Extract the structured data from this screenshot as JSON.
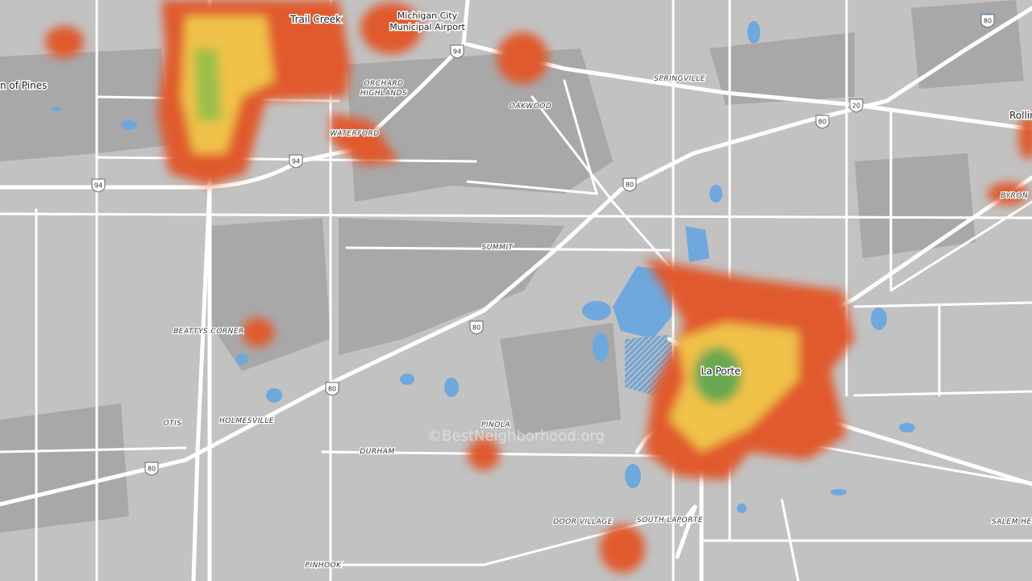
{
  "places": [
    "Trail Creek",
    "Michigan City",
    "Municipal Airport",
    "n of Pines",
    "ORCHARD",
    "HIGHLANDS",
    "WATERFORD",
    "OAKWOOD",
    "SPRINGVILLE",
    "Rollin",
    "BYRON",
    "SUMMIT",
    "BEATTYS CORNER",
    "La Porte",
    "OTIS",
    "HOLMESVILLE",
    "DURHAM",
    "PINOLA",
    "DOOR VILLAGE",
    "SOUTH LAPORTE",
    "SALEM HE",
    "PINHOOK"
  ],
  "shields": [
    "94",
    "94",
    "94",
    "20",
    "80",
    "80",
    "80",
    "80",
    "80",
    "80"
  ],
  "watermark": "©BestNeighborhood.org"
}
